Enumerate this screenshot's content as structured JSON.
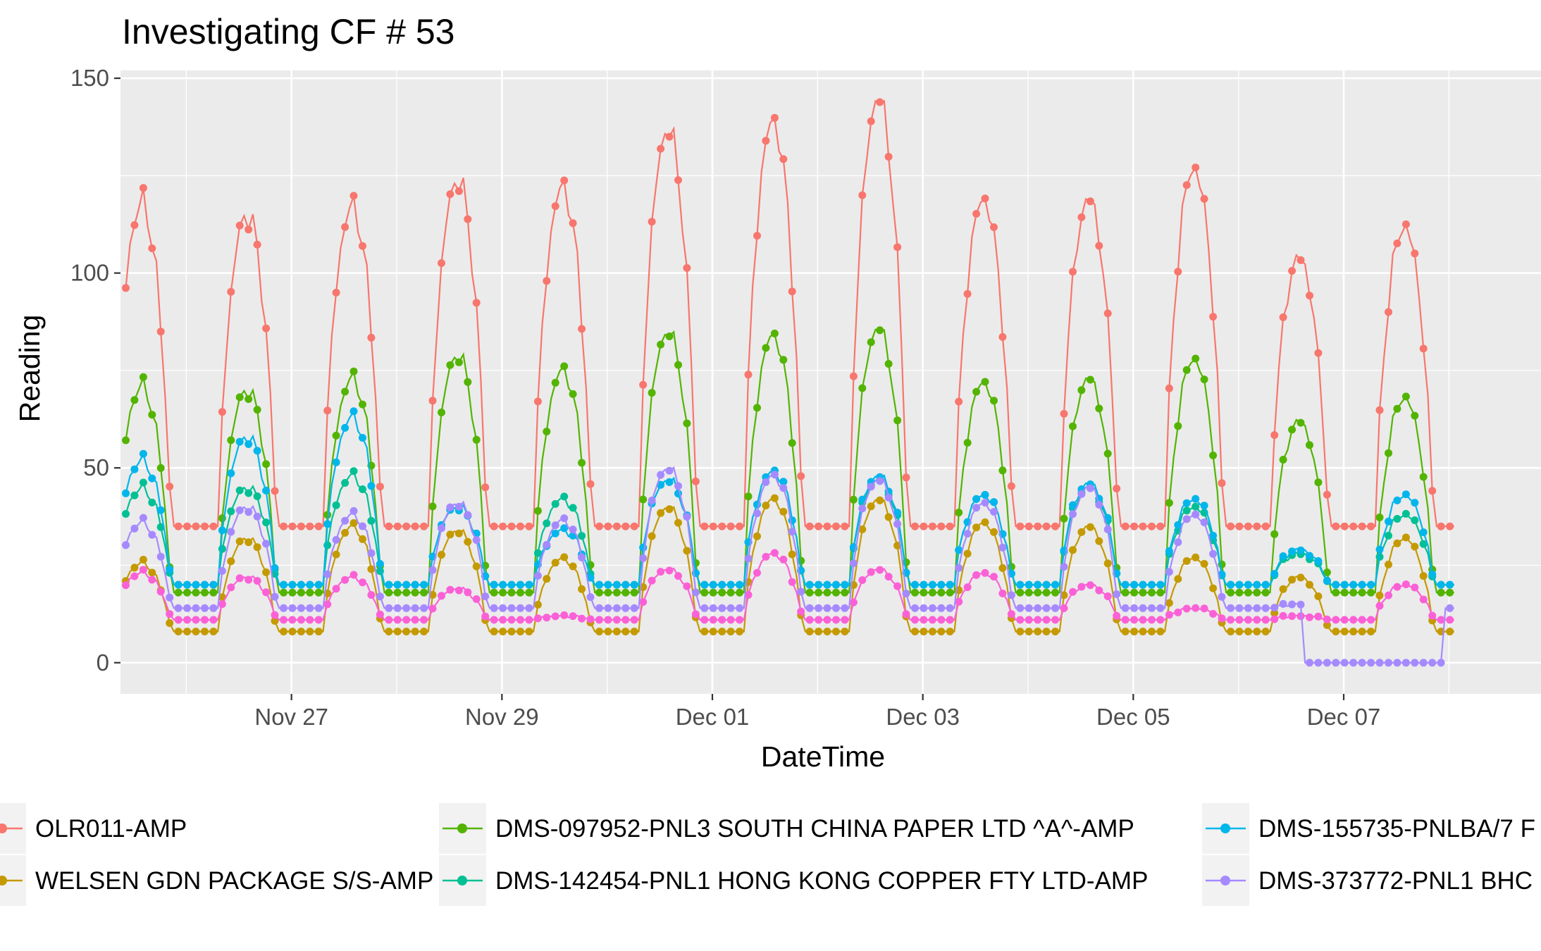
{
  "chart_data": {
    "type": "line",
    "title": "Investigating CF # 53",
    "xlabel": "DateTime",
    "ylabel": "Reading",
    "ylim": [
      -8,
      152
    ],
    "y_ticks": [
      0,
      50,
      100,
      150
    ],
    "xlim_days": [
      "Nov 25 09:00",
      "Dec 08 21:00"
    ],
    "x_ticks": [
      {
        "label": "Nov 27",
        "day": "2017-11-27"
      },
      {
        "label": "Nov 29",
        "day": "2017-11-29"
      },
      {
        "label": "Dec 01",
        "day": "2017-12-01"
      },
      {
        "label": "Dec 03",
        "day": "2017-12-03"
      },
      {
        "label": "Dec 05",
        "day": "2017-12-05"
      },
      {
        "label": "Dec 07",
        "day": "2017-12-07"
      }
    ],
    "grid": true,
    "panel_background": "#ebebeb",
    "legend_position": "bottom",
    "series": [
      {
        "name": "OLR011-AMP",
        "color": "#f8766d",
        "style": "line+points",
        "daily_peaks": [
          {
            "day": "Nov 25",
            "peak": 118
          },
          {
            "day": "Nov 26",
            "peak": 115
          },
          {
            "day": "Nov 27",
            "peak": 117
          },
          {
            "day": "Nov 28",
            "peak": 124
          },
          {
            "day": "Nov 29",
            "peak": 122
          },
          {
            "day": "Nov 30",
            "peak": 137
          },
          {
            "day": "Dec 01",
            "peak": 139
          },
          {
            "day": "Dec 02",
            "peak": 145
          },
          {
            "day": "Dec 03",
            "peak": 119
          },
          {
            "day": "Dec 04",
            "peak": 119
          },
          {
            "day": "Dec 05",
            "peak": 127
          },
          {
            "day": "Dec 06",
            "peak": 104
          },
          {
            "day": "Dec 07",
            "peak": 112
          }
        ],
        "night_level": 35
      },
      {
        "name": "WELSEN GDN PACKAGE S/S-AMP",
        "color": "#c49a00",
        "style": "line+points",
        "daily_peaks": [
          {
            "day": "Nov 26",
            "peak": 32
          },
          {
            "day": "Nov 27",
            "peak": 35
          },
          {
            "day": "Nov 28",
            "peak": 34
          },
          {
            "day": "Nov 30",
            "peak": 40
          },
          {
            "day": "Dec 01",
            "peak": 42
          },
          {
            "day": "Dec 02",
            "peak": 42
          },
          {
            "day": "Dec 03",
            "peak": 36
          },
          {
            "day": "Dec 04",
            "peak": 35
          },
          {
            "day": "Dec 05",
            "peak": 27
          },
          {
            "day": "Dec 06",
            "peak": 22
          },
          {
            "day": "Dec 07",
            "peak": 32
          }
        ],
        "night_level": 8
      },
      {
        "name": "DMS-097952-PNL3 SOUTH CHINA PAPER LTD ^A^-AMP",
        "color": "#53b400",
        "style": "line+points",
        "daily_peaks": [
          {
            "day": "Nov 25",
            "peak": 71
          },
          {
            "day": "Nov 26",
            "peak": 70
          },
          {
            "day": "Nov 27",
            "peak": 73
          },
          {
            "day": "Nov 28",
            "peak": 79
          },
          {
            "day": "Nov 29",
            "peak": 75
          },
          {
            "day": "Nov 30",
            "peak": 85
          },
          {
            "day": "Dec 01",
            "peak": 84
          },
          {
            "day": "Dec 02",
            "peak": 86
          },
          {
            "day": "Dec 03",
            "peak": 72
          },
          {
            "day": "Dec 04",
            "peak": 73
          },
          {
            "day": "Dec 05",
            "peak": 78
          },
          {
            "day": "Dec 06",
            "peak": 62
          },
          {
            "day": "Dec 07",
            "peak": 68
          }
        ],
        "night_level": 18
      },
      {
        "name": "DMS-142454-PNL1 HONG KONG COPPER FTY LTD-AMP",
        "color": "#00c094",
        "style": "line+points",
        "daily_peaks": [
          {
            "day": "Nov 26",
            "peak": 45
          },
          {
            "day": "Nov 27",
            "peak": 48
          },
          {
            "day": "Nov 28",
            "peak": 40
          },
          {
            "day": "Nov 30",
            "peak": 47
          },
          {
            "day": "Dec 01",
            "peak": 49
          },
          {
            "day": "Dec 02",
            "peak": 47
          },
          {
            "day": "Dec 03",
            "peak": 43
          },
          {
            "day": "Dec 04",
            "peak": 45
          },
          {
            "day": "Dec 05",
            "peak": 40
          },
          {
            "day": "Dec 06",
            "peak": 28
          },
          {
            "day": "Dec 07",
            "peak": 38
          }
        ],
        "night_level": 20
      },
      {
        "name": "DMS-155735-PNLBA/7 F",
        "color": "#00b6eb",
        "style": "line+points",
        "daily_peaks": [
          {
            "day": "Nov 26",
            "peak": 58
          },
          {
            "day": "Nov 27",
            "peak": 63
          },
          {
            "day": "Nov 28",
            "peak": 40
          },
          {
            "day": "Nov 29",
            "peak": 34
          },
          {
            "day": "Nov 30",
            "peak": 47
          },
          {
            "day": "Dec 01",
            "peak": 49
          },
          {
            "day": "Dec 02",
            "peak": 48
          },
          {
            "day": "Dec 03",
            "peak": 43
          },
          {
            "day": "Dec 04",
            "peak": 46
          },
          {
            "day": "Dec 05",
            "peak": 42
          },
          {
            "day": "Dec 06",
            "peak": 29
          },
          {
            "day": "Dec 07",
            "peak": 43
          }
        ],
        "night_level": 20
      },
      {
        "name": "",
        "color": "#fb61d7",
        "style": "line+points",
        "daily_peaks": [
          {
            "day": "Nov 26",
            "peak": 22
          },
          {
            "day": "Nov 27",
            "peak": 22
          },
          {
            "day": "Nov 28",
            "peak": 19
          },
          {
            "day": "Nov 29",
            "peak": 12
          },
          {
            "day": "Nov 30",
            "peak": 24
          },
          {
            "day": "Dec 01",
            "peak": 28
          },
          {
            "day": "Dec 02",
            "peak": 24
          },
          {
            "day": "Dec 03",
            "peak": 23
          },
          {
            "day": "Dec 04",
            "peak": 20
          },
          {
            "day": "Dec 05",
            "peak": 14
          },
          {
            "day": "Dec 06",
            "peak": 12
          },
          {
            "day": "Dec 07",
            "peak": 20
          }
        ],
        "night_level": 11
      },
      {
        "name": "DMS-373772-PNL1 BHC",
        "color": "#a58aff",
        "style": "line+points",
        "daily_peaks": [
          {
            "day": "Nov 26",
            "peak": 40
          },
          {
            "day": "Nov 27",
            "peak": 38
          },
          {
            "day": "Nov 28",
            "peak": 41
          },
          {
            "day": "Nov 30",
            "peak": 50
          },
          {
            "day": "Dec 01",
            "peak": 48
          },
          {
            "day": "Dec 02",
            "peak": 47
          },
          {
            "day": "Dec 03",
            "peak": 41
          },
          {
            "day": "Dec 04",
            "peak": 45
          },
          {
            "day": "Dec 05",
            "peak": 38
          },
          {
            "day": "Dec 06",
            "peak": 15
          },
          {
            "day": "Dec 07",
            "peak": 0
          }
        ],
        "night_level": 14,
        "note_zero_period": [
          "Dec 06 15:00",
          "Dec 07 23:00"
        ]
      }
    ],
    "legend": {
      "entries": [
        {
          "label": "OLR011-AMP",
          "series": 0
        },
        {
          "label": "WELSEN GDN PACKAGE S/S-AMP",
          "series": 1
        },
        {
          "label": "DMS-097952-PNL3 SOUTH CHINA PAPER LTD ^A^-AMP",
          "series": 2
        },
        {
          "label": "DMS-142454-PNL1 HONG KONG COPPER FTY LTD-AMP",
          "series": 3
        },
        {
          "label": "DMS-155735-PNLBA/7 F",
          "series": 4
        },
        {
          "label": "DMS-373772-PNL1 BHC",
          "series": 6
        }
      ]
    }
  }
}
